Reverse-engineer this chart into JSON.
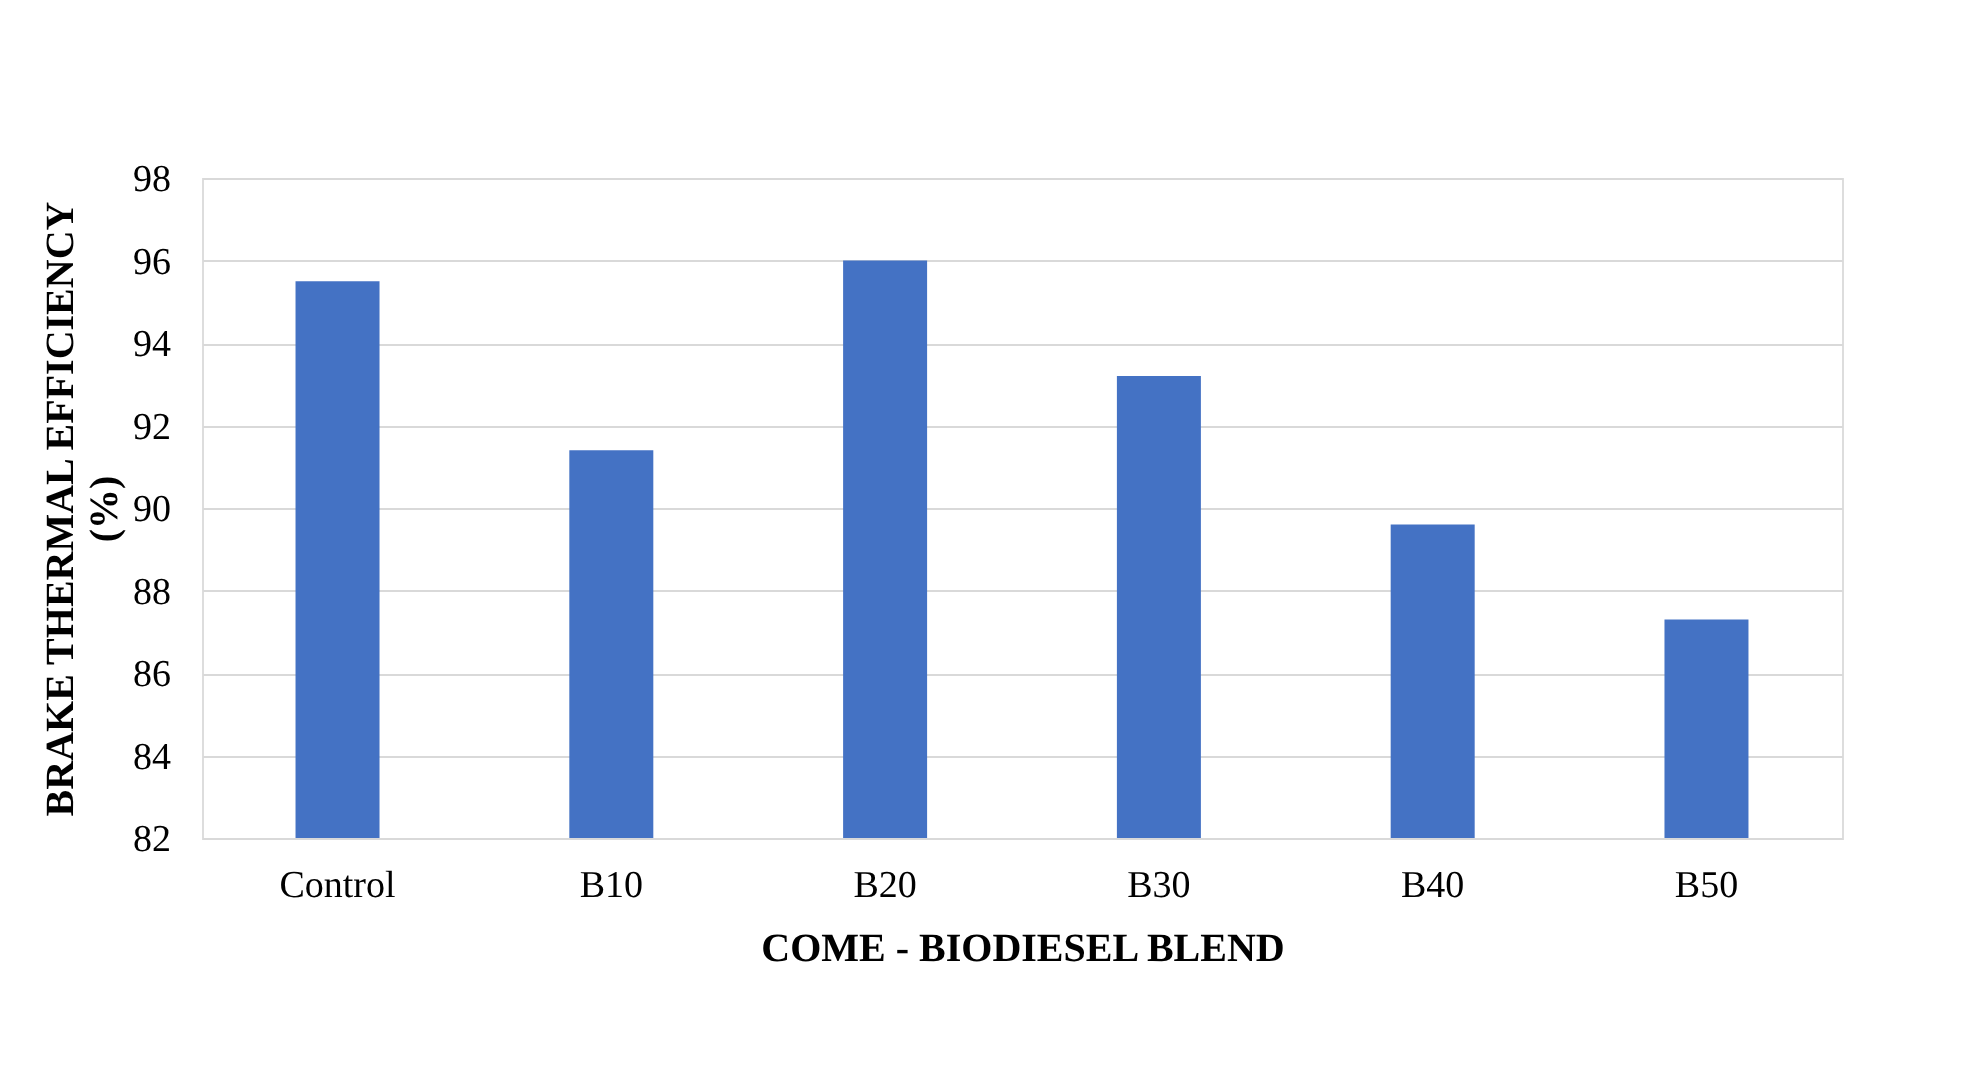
{
  "chart_data": {
    "type": "bar",
    "xlabel": "COME - BIODIESEL BLEND",
    "ylabel": "BRAKE THERMAL EFFICIENCY (%)",
    "categories": [
      "Control",
      "B10",
      "B20",
      "B30",
      "B40",
      "B50"
    ],
    "values": [
      95.5,
      91.4,
      96.0,
      93.2,
      89.6,
      87.3
    ],
    "color": "#4472c4",
    "ylim": [
      82,
      98
    ],
    "yticks": [
      82,
      84,
      86,
      88,
      90,
      92,
      94,
      96,
      98
    ],
    "grid": "y"
  }
}
